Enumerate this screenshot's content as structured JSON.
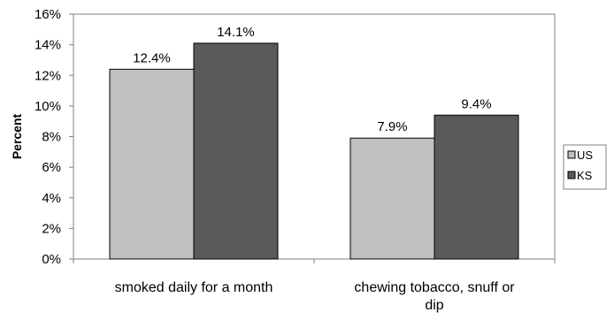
{
  "chart_data": {
    "type": "bar",
    "categories": [
      "smoked daily for a month",
      "chewing tobacco, snuff or dip"
    ],
    "category_lines": [
      [
        "smoked daily for a month"
      ],
      [
        "chewing tobacco, snuff or",
        "dip"
      ]
    ],
    "series": [
      {
        "name": "US",
        "values": [
          12.4,
          7.9
        ],
        "labels": [
          "12.4%",
          "7.9%"
        ],
        "color": "#c0c0c0"
      },
      {
        "name": "KS",
        "values": [
          14.1,
          9.4
        ],
        "labels": [
          "14.1%",
          "9.4%"
        ],
        "color": "#5a5a5a"
      }
    ],
    "ylabel": "Percent",
    "ylim": [
      0,
      16
    ],
    "yticks": [
      0,
      2,
      4,
      6,
      8,
      10,
      12,
      14,
      16
    ],
    "ytick_labels": [
      "0%",
      "2%",
      "4%",
      "6%",
      "8%",
      "10%",
      "12%",
      "14%",
      "16%"
    ],
    "grid": false,
    "legend_position": "right"
  }
}
